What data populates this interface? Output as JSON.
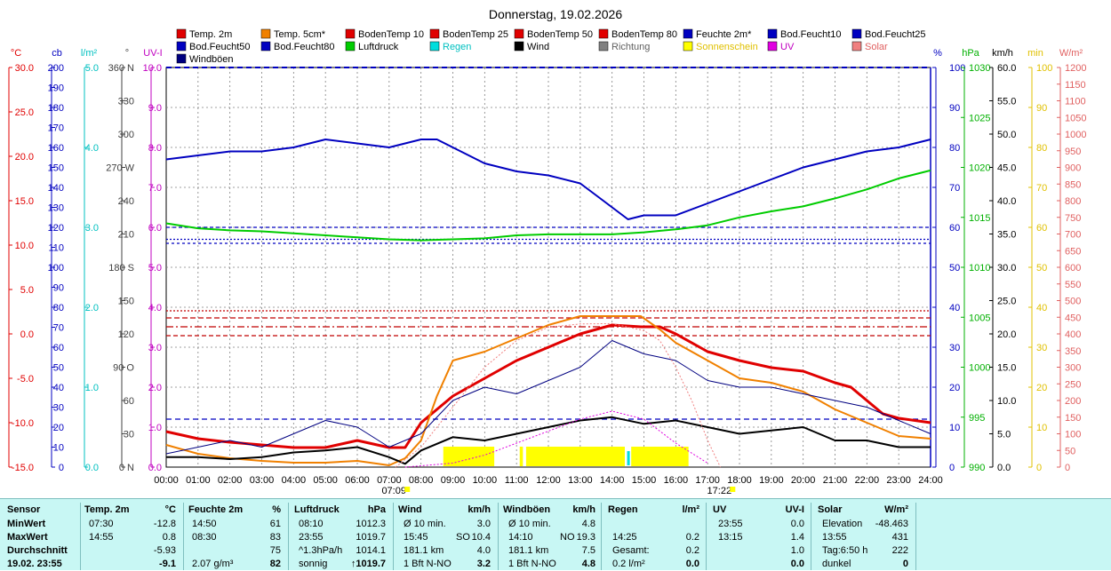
{
  "chart_data": {
    "type": "line",
    "title": "Donnerstag, 19.02.2026",
    "legend": [
      {
        "name": "Temp. 2m",
        "color": "#e00000"
      },
      {
        "name": "Temp. 5cm*",
        "color": "#f08000"
      },
      {
        "name": "BodenTemp 10",
        "color": "#e00000"
      },
      {
        "name": "BodenTemp 25",
        "color": "#e00000"
      },
      {
        "name": "BodenTemp 50",
        "color": "#e00000"
      },
      {
        "name": "BodenTemp 80",
        "color": "#e00000"
      },
      {
        "name": "Feuchte 2m*",
        "color": "#0000c0"
      },
      {
        "name": "Bod.Feucht10",
        "color": "#0000c0"
      },
      {
        "name": "Bod.Feucht25",
        "color": "#0000c0"
      },
      {
        "name": "Bod.Feucht50",
        "color": "#0000c0"
      },
      {
        "name": "Bod.Feucht80",
        "color": "#0000c0"
      },
      {
        "name": "Luftdruck",
        "color": "#00cc00"
      },
      {
        "name": "Regen",
        "color": "#00dddd"
      },
      {
        "name": "Wind",
        "color": "#000000"
      },
      {
        "name": "Richtung",
        "color": "#808080"
      },
      {
        "name": "Sonnenschein",
        "color": "#ffff00"
      },
      {
        "name": "UV",
        "color": "#e000e0"
      },
      {
        "name": "Solar",
        "color": "#f08080"
      },
      {
        "name": "Windböen",
        "color": "#000080"
      }
    ],
    "x_ticks": [
      "00:00",
      "01:00",
      "02:00",
      "03:00",
      "04:00",
      "05:00",
      "06:00",
      "07:00",
      "08:00",
      "09:00",
      "10:00",
      "11:00",
      "12:00",
      "13:00",
      "14:00",
      "15:00",
      "16:00",
      "17:00",
      "18:00",
      "19:00",
      "20:00",
      "21:00",
      "22:00",
      "23:00",
      "24:00"
    ],
    "sunrise": "07:09",
    "sunset": "17:22",
    "axes": [
      {
        "unit": "°C",
        "color": "#e00000",
        "min": -15,
        "max": 30,
        "ticks": [
          "30.0",
          "25.0",
          "20.0",
          "15.0",
          "10.0",
          "5.0",
          "0.0",
          "-5.0",
          "-10.0",
          "-15.0"
        ]
      },
      {
        "unit": "cb",
        "color": "#0000c0",
        "min": 0,
        "max": 200,
        "ticks": [
          "200",
          "190",
          "180",
          "170",
          "160",
          "150",
          "140",
          "130",
          "120",
          "110",
          "100",
          "90",
          "80",
          "70",
          "60",
          "50",
          "40",
          "30",
          "20",
          "10",
          "0"
        ]
      },
      {
        "unit": "l/m²",
        "color": "#00c0c0",
        "min": 0,
        "max": 5,
        "ticks": [
          "5.0",
          "4.0",
          "3.0",
          "2.0",
          "1.0",
          "0.0"
        ]
      },
      {
        "unit": "°",
        "color": "#404040",
        "min": 0,
        "max": 360,
        "ticks": [
          "360 N",
          "330",
          "300",
          "270 W",
          "240",
          "210",
          "180 S",
          "150",
          "120",
          "90 O",
          "60",
          "30",
          "0 N"
        ]
      },
      {
        "unit": "UV-I",
        "color": "#c000c0",
        "min": 0,
        "max": 10,
        "ticks": [
          "10.0",
          "9.0",
          "8.0",
          "7.0",
          "6.0",
          "5.0",
          "4.0",
          "3.0",
          "2.0",
          "1.0",
          "0.0"
        ]
      },
      {
        "unit": "%",
        "color": "#0000c0",
        "min": 0,
        "max": 100,
        "ticks": [
          "100",
          "90",
          "80",
          "70",
          "60",
          "50",
          "40",
          "30",
          "20",
          "10",
          "0"
        ]
      },
      {
        "unit": "hPa",
        "color": "#00b000",
        "min": 990,
        "max": 1030,
        "ticks": [
          "1030",
          "1025",
          "1020",
          "1015",
          "1010",
          "1005",
          "1000",
          "995",
          "990"
        ]
      },
      {
        "unit": "km/h",
        "color": "#000000",
        "min": 0,
        "max": 60,
        "ticks": [
          "60.0",
          "55.0",
          "50.0",
          "45.0",
          "40.0",
          "35.0",
          "30.0",
          "25.0",
          "20.0",
          "15.0",
          "10.0",
          "5.0",
          "0.0"
        ]
      },
      {
        "unit": "min",
        "color": "#e0c000",
        "min": 0,
        "max": 100,
        "ticks": [
          "100",
          "90",
          "80",
          "70",
          "60",
          "50",
          "40",
          "30",
          "20",
          "10",
          "0"
        ]
      },
      {
        "unit": "W/m²",
        "color": "#e06060",
        "min": 0,
        "max": 1200,
        "ticks": [
          "1200",
          "1150",
          "1100",
          "1050",
          "1000",
          "950",
          "900",
          "850",
          "800",
          "750",
          "700",
          "650",
          "600",
          "550",
          "500",
          "450",
          "400",
          "350",
          "300",
          "250",
          "200",
          "150",
          "100",
          "50",
          "0"
        ]
      }
    ],
    "series": [
      {
        "name": "Temp. 2m",
        "axis": "°C",
        "x": [
          0,
          1,
          2,
          3,
          4,
          5,
          6,
          7,
          7.5,
          8,
          9,
          10,
          11,
          12,
          13,
          14,
          14.9,
          15.5,
          16,
          17,
          18,
          19,
          20,
          21,
          21.5,
          22,
          22.5,
          23,
          24
        ],
        "values": [
          -11,
          -11.8,
          -12.2,
          -12.5,
          -12.8,
          -12.8,
          -12,
          -12.8,
          -12.8,
          -10,
          -7,
          -5,
          -3,
          -1.5,
          0,
          1,
          0.8,
          0.8,
          0,
          -2,
          -3,
          -3.8,
          -4.2,
          -5.5,
          -6,
          -7.5,
          -9,
          -9.5,
          -10
        ]
      },
      {
        "name": "Temp. 5cm*",
        "axis": "°C",
        "x": [
          0,
          1,
          2,
          3,
          4,
          5,
          6,
          7,
          7.5,
          8,
          8.5,
          9,
          10,
          11,
          12,
          13,
          14,
          14.9,
          15.5,
          16,
          17,
          18,
          19,
          20,
          21,
          22,
          23,
          24
        ],
        "values": [
          -12.5,
          -13.5,
          -14,
          -14.3,
          -14.5,
          -14.5,
          -14.3,
          -14.8,
          -14,
          -12,
          -7,
          -3,
          -2,
          -0.5,
          1,
          2,
          2,
          2,
          0.5,
          -1,
          -3,
          -5,
          -5.5,
          -6.5,
          -8.5,
          -10,
          -11.5,
          -11.8
        ]
      },
      {
        "name": "Feuchte 2m*",
        "axis": "%",
        "x": [
          0,
          1,
          2,
          3,
          4,
          5,
          6,
          7,
          8,
          8.5,
          9,
          10,
          11,
          12,
          13,
          13.5,
          14,
          14.5,
          15,
          15.5,
          16,
          17,
          18,
          19,
          20,
          21,
          22,
          23,
          23.5,
          24
        ],
        "values": [
          77,
          78,
          79,
          79,
          80,
          82,
          81,
          80,
          82,
          82,
          80,
          76,
          74,
          73,
          71,
          68,
          65,
          62,
          63,
          63,
          63,
          66,
          69,
          72,
          75,
          77,
          79,
          80,
          81,
          82
        ]
      },
      {
        "name": "Luftdruck",
        "axis": "hPa",
        "x": [
          0,
          1,
          2,
          3,
          4,
          5,
          6,
          7,
          8,
          9,
          10,
          11,
          12,
          13,
          14,
          15,
          16,
          17,
          18,
          19,
          20,
          21,
          22,
          23,
          24
        ],
        "values": [
          1014.4,
          1013.9,
          1013.7,
          1013.6,
          1013.4,
          1013.2,
          1013.0,
          1012.8,
          1012.7,
          1012.8,
          1012.9,
          1013.2,
          1013.3,
          1013.3,
          1013.3,
          1013.5,
          1013.8,
          1014.2,
          1015.0,
          1015.6,
          1016.1,
          1016.9,
          1017.8,
          1018.9,
          1019.7
        ]
      },
      {
        "name": "Wind",
        "axis": "km/h",
        "x": [
          0,
          1,
          2,
          3,
          4,
          5,
          6,
          7,
          7.5,
          8,
          9,
          10,
          11,
          12,
          13,
          14,
          15,
          16,
          17,
          18,
          19,
          20,
          21,
          22,
          23,
          24
        ],
        "values": [
          1.5,
          1.5,
          1.2,
          1.5,
          2.2,
          2.5,
          3,
          1.5,
          0.5,
          2.5,
          4.5,
          4,
          5,
          6,
          7,
          7.5,
          6.5,
          7,
          6,
          5,
          5.5,
          6,
          4,
          4,
          3,
          3
        ]
      },
      {
        "name": "Windböen",
        "axis": "km/h",
        "x": [
          0,
          1,
          2,
          3,
          4,
          5,
          6,
          7,
          8,
          9,
          10,
          11,
          12,
          13,
          14,
          15,
          16,
          17,
          18,
          19,
          20,
          21,
          22,
          23,
          24
        ],
        "values": [
          2,
          3,
          4,
          3,
          5,
          7,
          6,
          3,
          5,
          10,
          12,
          11,
          13,
          15,
          19,
          17,
          16,
          13,
          12,
          12,
          11,
          10,
          9,
          7,
          5
        ]
      },
      {
        "name": "Solar",
        "axis": "W/m²",
        "x": [
          7.2,
          8,
          9,
          10,
          11,
          12,
          13,
          14,
          15,
          15.5,
          16,
          16.5,
          17,
          17.4
        ],
        "values": [
          0,
          60,
          180,
          300,
          380,
          420,
          430,
          431,
          410,
          380,
          300,
          200,
          80,
          0
        ]
      },
      {
        "name": "UV",
        "axis": "UV-I",
        "x": [
          7.5,
          9,
          10,
          11,
          12,
          13,
          14,
          15,
          16,
          17
        ],
        "values": [
          0,
          0.1,
          0.3,
          0.6,
          0.9,
          1.2,
          1.4,
          1.2,
          0.6,
          0.1
        ]
      },
      {
        "name": "Sonnenschein",
        "axis": "min",
        "x": [
          [
            8.7,
            10.3
          ],
          [
            11.1,
            11.2
          ],
          [
            11.3,
            14.4
          ],
          [
            14.6,
            16.4
          ]
        ],
        "values": []
      }
    ],
    "soil": {
      "BodenTemp 10": -0.2,
      "BodenTemp 25": 0.8,
      "BodenTemp 50": 1.8,
      "BodenTemp 80": 2.6,
      "Bod.Feucht10": 56,
      "Bod.Feucht25": 57,
      "Bod.Feucht50": 60,
      "Bod.Feucht80": 12
    }
  },
  "summary": {
    "headers": {
      "sensor": "Sensor",
      "temp": "Temp. 2m",
      "temp_u": "°C",
      "hum": "Feuchte 2m",
      "hum_u": "%",
      "press": "Luftdruck",
      "press_u": "hPa",
      "wind": "Wind",
      "wind_u": "km/h",
      "gust": "Windböen",
      "gust_u": "km/h",
      "rain": "Regen",
      "rain_u": "l/m²",
      "uv": "UV",
      "uv_u": "UV-I",
      "solar": "Solar",
      "solar_u": "W/m²"
    },
    "rows": [
      {
        "label": "MinWert",
        "t_time": "07:30",
        "t_val": "-12.8",
        "h_time": "14:50",
        "h_val": "61",
        "p_time": "08:10",
        "p_val": "1012.3",
        "w_a": "Ø 10 min.",
        "w_val": "3.0",
        "g_a": "Ø 10 min.",
        "g_val": "4.8",
        "r_time": "",
        "r_val": "",
        "uv_time": "23:55",
        "uv_val": "0.0",
        "s_a": "Elevation",
        "s_val": "-48.463"
      },
      {
        "label": "MaxWert",
        "t_time": "14:55",
        "t_val": "0.8",
        "h_time": "08:30",
        "h_val": "83",
        "p_time": "23:55",
        "p_val": "1019.7",
        "w_a": "15:45",
        "w_b": "SO",
        "w_val": "10.4",
        "g_a": "14:10",
        "g_b": "NO",
        "g_val": "19.3",
        "r_time": "14:25",
        "r_val": "0.2",
        "uv_time": "13:15",
        "uv_val": "1.4",
        "s_a": "13:55",
        "s_val": "431"
      },
      {
        "label": "Durchschnitt",
        "t_time": "",
        "t_val": "-5.93",
        "h_time": "",
        "h_val": "75",
        "p_time": "^1.3hPa/h",
        "p_val": "1014.1",
        "w_a": "181.1 km",
        "w_val": "4.0",
        "g_a": "181.1 km",
        "g_val": "7.5",
        "r_time": "Gesamt:",
        "r_val": "0.2",
        "uv_time": "",
        "uv_val": "1.0",
        "s_a": "Tag:6:50 h",
        "s_val": "222"
      },
      {
        "label": "19.02. 23:55",
        "t_time": "",
        "t_val": "-9.1",
        "h_time": "2.07 g/m³",
        "h_val": "82",
        "p_time": "sonnig",
        "p_val": "↑1019.7",
        "w_a": "1 Bft N-NO",
        "w_val": "3.2",
        "g_a": "1 Bft N-NO",
        "g_val": "4.8",
        "r_time": "0.2 l/m²",
        "r_val": "0.0",
        "uv_time": "",
        "uv_val": "0.0",
        "s_a": "dunkel",
        "s_val": "0"
      }
    ]
  }
}
